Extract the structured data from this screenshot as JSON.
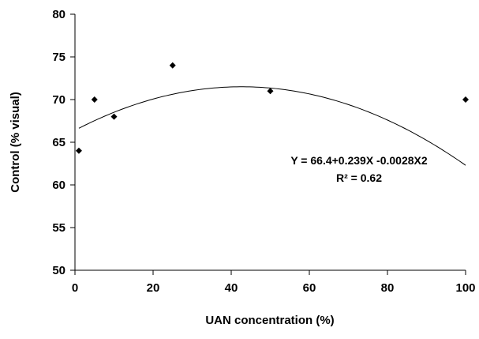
{
  "chart_data": {
    "type": "scatter",
    "xlabel": "UAN concentration (%)",
    "ylabel": "Control (% visual)",
    "xlim": [
      0,
      100
    ],
    "ylim": [
      50,
      80
    ],
    "x_ticks": [
      0,
      20,
      40,
      60,
      80,
      100
    ],
    "y_ticks": [
      50,
      55,
      60,
      65,
      70,
      75,
      80
    ],
    "grid": false,
    "series": [
      {
        "marker": "diamond",
        "color": "#000000",
        "x": [
          1,
          5,
          10,
          25,
          50,
          100
        ],
        "y": [
          64,
          70,
          68,
          74,
          71,
          70
        ]
      }
    ],
    "trendline": {
      "type": "quadratic",
      "coefficients": {
        "intercept": 66.4,
        "linear": 0.239,
        "quadratic": -0.0028
      },
      "x_range": [
        1,
        100
      ],
      "color": "#000000"
    },
    "annotations": [
      "Y = 66.4+0.239X -0.0028X2",
      "R² = 0.62"
    ]
  }
}
